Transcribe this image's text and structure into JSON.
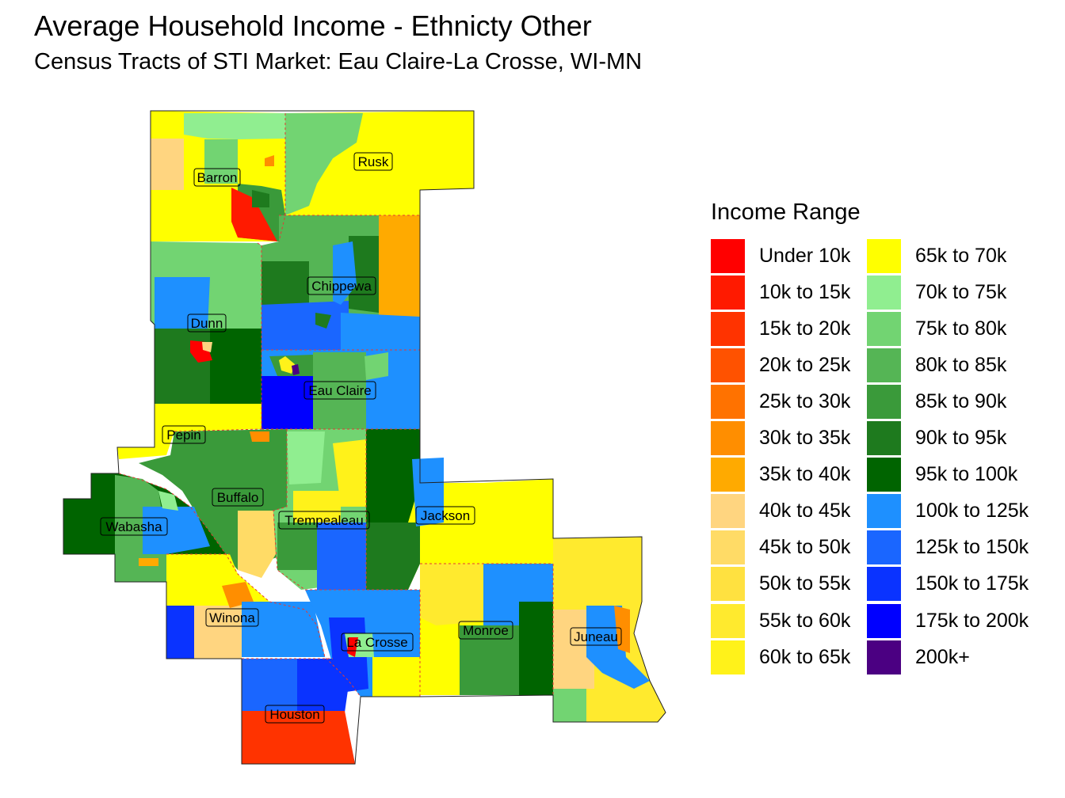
{
  "title": "Average Household Income - Ethnicty Other",
  "subtitle": "Census Tracts of STI Market: Eau Claire-La Crosse, WI-MN",
  "legend": {
    "title": "Income Range",
    "items": [
      {
        "label": "Under 10k",
        "color": "#FF0000"
      },
      {
        "label": "10k to 15k",
        "color": "#FF1A00"
      },
      {
        "label": "15k to 20k",
        "color": "#FF3300"
      },
      {
        "label": "20k to 25k",
        "color": "#FF5200"
      },
      {
        "label": "25k to 30k",
        "color": "#FF7200"
      },
      {
        "label": "30k to 35k",
        "color": "#FF8E00"
      },
      {
        "label": "35k to 40k",
        "color": "#FFAA00"
      },
      {
        "label": "40k to 45k",
        "color": "#FFD580"
      },
      {
        "label": "45k to 50k",
        "color": "#FFDB66"
      },
      {
        "label": "50k to 55k",
        "color": "#FFE140"
      },
      {
        "label": "55k to 60k",
        "color": "#FFEA2E"
      },
      {
        "label": "60k to 65k",
        "color": "#FFF21A"
      },
      {
        "label": "65k to 70k",
        "color": "#FFFF00"
      },
      {
        "label": "70k to 75k",
        "color": "#90EE90"
      },
      {
        "label": "75k to 80k",
        "color": "#72D472"
      },
      {
        "label": "80k to 85k",
        "color": "#55B555"
      },
      {
        "label": "85k to 90k",
        "color": "#3A9A3A"
      },
      {
        "label": "90k to 95k",
        "color": "#1E7A1E"
      },
      {
        "label": "95k to 100k",
        "color": "#006400"
      },
      {
        "label": "100k to 125k",
        "color": "#1E90FF"
      },
      {
        "label": "125k to 150k",
        "color": "#1A66FF"
      },
      {
        "label": "150k to 175k",
        "color": "#0A33FF"
      },
      {
        "label": "175k to 200k",
        "color": "#0000FF"
      },
      {
        "label": "200k+",
        "color": "#4B0082"
      }
    ]
  },
  "counties": [
    {
      "name": "Barron"
    },
    {
      "name": "Rusk"
    },
    {
      "name": "Chippewa"
    },
    {
      "name": "Dunn"
    },
    {
      "name": "Eau Claire"
    },
    {
      "name": "Pepin"
    },
    {
      "name": "Buffalo"
    },
    {
      "name": "Wabasha"
    },
    {
      "name": "Trempealeau"
    },
    {
      "name": "Jackson"
    },
    {
      "name": "Winona"
    },
    {
      "name": "La Crosse"
    },
    {
      "name": "Monroe"
    },
    {
      "name": "Juneau"
    },
    {
      "name": "Houston"
    }
  ]
}
